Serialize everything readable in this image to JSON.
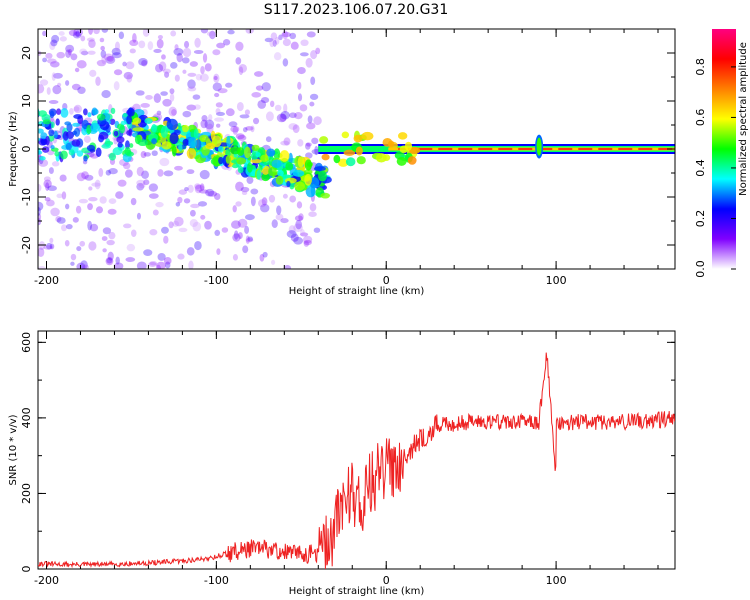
{
  "title": "S117.2023.106.07.20.G31",
  "chart_data": [
    {
      "type": "heatmap",
      "xlabel": "Height of straight line (km)",
      "ylabel": "Frequency (Hz)",
      "xlim": [
        -205,
        170
      ],
      "ylim": [
        -25,
        25
      ],
      "x_ticks": [
        -200,
        -100,
        0,
        100
      ],
      "x_tick_labels": [
        "-200",
        "-100",
        "0",
        "100"
      ],
      "y_ticks": [
        -20,
        -10,
        0,
        10,
        20
      ],
      "y_tick_labels": [
        "-20",
        "-10",
        "0",
        "10",
        "20"
      ],
      "colorbar": {
        "label": "Normalized spectral amplitude",
        "range": [
          0,
          0.95
        ],
        "ticks": [
          0,
          0.2,
          0.4,
          0.6,
          0.8
        ],
        "tick_labels": [
          "0.0",
          "0.2",
          "0.4",
          "0.6",
          "0.8"
        ],
        "colormap": [
          "#ffffff",
          "#8000ff",
          "#0000ff",
          "#00ffff",
          "#00ff00",
          "#ffff00",
          "#ff8000",
          "#ff0000",
          "#ff0080"
        ]
      },
      "features": [
        {
          "description": "scattered weak signal",
          "x_range": [
            -205,
            -100
          ],
          "freq_range": [
            -25,
            25
          ],
          "amplitude": 0.15
        },
        {
          "description": "descending Doppler trace",
          "x_start": -150,
          "freq_start": 5,
          "x_end": -35,
          "freq_end": -7,
          "amplitude": 0.45
        },
        {
          "description": "carrier line",
          "x_range": [
            -40,
            170
          ],
          "freq": 0,
          "amplitude": 0.85
        },
        {
          "description": "ionospheric disturbance",
          "x": 90,
          "freq_range": [
            -3,
            4
          ],
          "amplitude": 0.5
        }
      ],
      "grid": false
    },
    {
      "type": "line",
      "xlabel": "Height of straight line (km)",
      "ylabel": "SNR (10 * v/v)",
      "xlim": [
        -205,
        170
      ],
      "ylim": [
        0,
        630
      ],
      "x_ticks": [
        -200,
        -100,
        0,
        100
      ],
      "x_tick_labels": [
        "-200",
        "-100",
        "0",
        "100"
      ],
      "y_ticks": [
        0,
        200,
        400,
        600
      ],
      "y_tick_labels": [
        "0",
        "200",
        "400",
        "600"
      ],
      "series": [
        {
          "color": "#ee2222",
          "x": [
            -205,
            -190,
            -170,
            -150,
            -130,
            -110,
            -100,
            -90,
            -80,
            -70,
            -60,
            -50,
            -40,
            -35,
            -30,
            -25,
            -20,
            -15,
            -10,
            -5,
            0,
            5,
            10,
            15,
            20,
            25,
            30,
            40,
            50,
            60,
            70,
            80,
            90,
            95,
            97,
            100,
            110,
            120,
            130,
            140,
            150,
            160,
            170
          ],
          "y": [
            14,
            12,
            12,
            14,
            18,
            25,
            33,
            45,
            55,
            52,
            45,
            40,
            40,
            60,
            110,
            190,
            210,
            170,
            220,
            250,
            260,
            280,
            300,
            320,
            340,
            360,
            380,
            385,
            390,
            392,
            390,
            388,
            390,
            600,
            250,
            390,
            388,
            390,
            388,
            390,
            392,
            395,
            398
          ]
        }
      ],
      "grid": false
    }
  ]
}
